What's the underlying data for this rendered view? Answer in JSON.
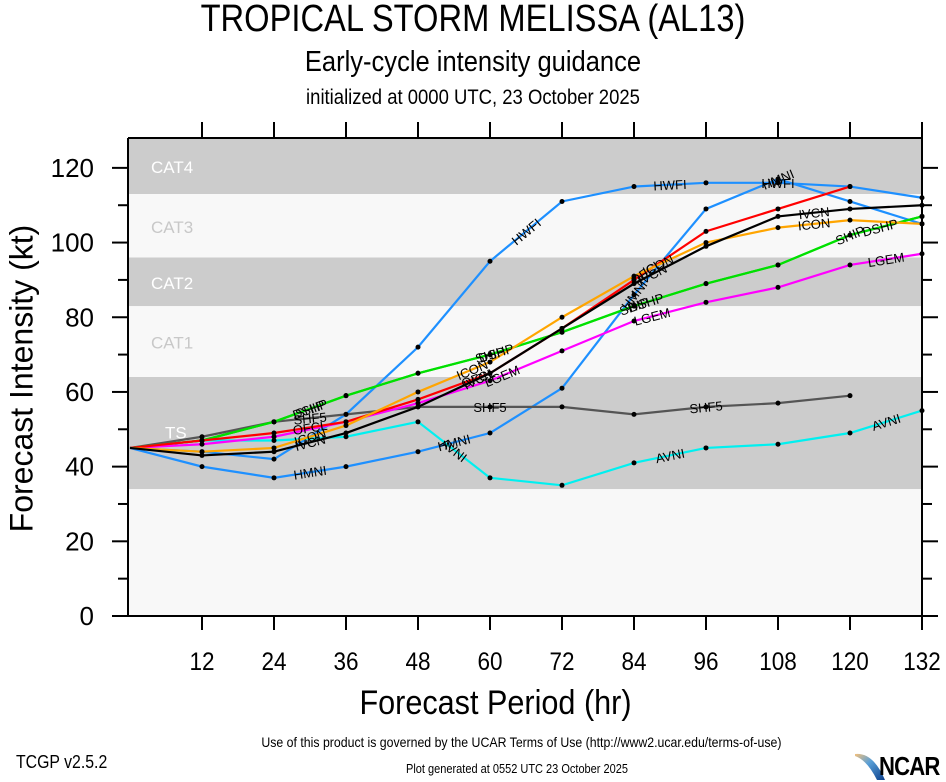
{
  "header": {
    "title": "TROPICAL STORM MELISSA (AL13)",
    "subtitle": "Early-cycle intensity guidance",
    "init": "initialized at 0000 UTC, 23 October 2025"
  },
  "footer": {
    "terms": "Use of this product is governed by the UCAR Terms of Use (http://www2.ucar.edu/terms-of-use)",
    "version": "TCGP v2.5.2",
    "generated": "Plot generated at 0552 UTC   23 October 2025",
    "logo": "NCAR"
  },
  "chart_data": {
    "type": "line",
    "title": "TROPICAL STORM MELISSA (AL13)",
    "xlabel": "Forecast Period (hr)",
    "ylabel": "Forecast Intensity (kt)",
    "xlim": [
      0,
      132
    ],
    "ylim": [
      0,
      128
    ],
    "xticks": [
      12,
      24,
      36,
      48,
      60,
      72,
      84,
      96,
      108,
      120,
      132
    ],
    "yticks": [
      0,
      20,
      40,
      60,
      80,
      100,
      120
    ],
    "grid": false,
    "legend": "inline-labels",
    "bands": [
      {
        "label": "TS",
        "min": 34,
        "max": 64,
        "fill": "#cccccc",
        "label_color": "#ffffff"
      },
      {
        "label": "CAT1",
        "min": 64,
        "max": 83,
        "fill": "#f8f8f8",
        "label_color": "#c8c8c8"
      },
      {
        "label": "CAT2",
        "min": 83,
        "max": 96,
        "fill": "#cccccc",
        "label_color": "#ffffff"
      },
      {
        "label": "CAT3",
        "min": 96,
        "max": 113,
        "fill": "#f8f8f8",
        "label_color": "#c8c8c8"
      },
      {
        "label": "CAT4",
        "min": 113,
        "max": 128,
        "fill": "#cccccc",
        "label_color": "#ffffff"
      }
    ],
    "base_fill": "#f8f8f8",
    "x": [
      0,
      12,
      24,
      36,
      48,
      60,
      72,
      84,
      96,
      108,
      120,
      132
    ],
    "series": [
      {
        "name": "HWFI",
        "color": "#1e90ff",
        "values": [
          45,
          44,
          42,
          54,
          72,
          95,
          111,
          115,
          116,
          116,
          115,
          112
        ],
        "label_at": [
          66,
          90,
          108
        ]
      },
      {
        "name": "HMNI",
        "color": "#1e90ff",
        "values": [
          45,
          40,
          37,
          40,
          44,
          49,
          61,
          86,
          109,
          117,
          111,
          105
        ],
        "label_at": [
          30,
          54,
          84,
          108
        ]
      },
      {
        "name": "AVNI",
        "color": "#00f0f0",
        "values": [
          45,
          47,
          47,
          48,
          52,
          37,
          35,
          41,
          45,
          46,
          49,
          55
        ],
        "label_at": [
          54,
          90,
          126
        ]
      },
      {
        "name": "SHF5",
        "color": "#555555",
        "values": [
          45,
          48,
          52,
          54,
          56,
          56,
          56,
          54,
          56,
          57,
          59,
          null
        ],
        "label_at": [
          30,
          60,
          96
        ]
      },
      {
        "name": "SHIP",
        "color": "#00e000",
        "values": [
          45,
          47,
          52,
          59,
          65,
          70,
          76,
          83,
          89,
          94,
          102,
          107
        ],
        "label_at": [
          30,
          60,
          84,
          120
        ]
      },
      {
        "name": "DSHP",
        "color": "#00e000",
        "values": [
          45,
          47,
          52,
          59,
          65,
          70,
          76,
          83,
          89,
          94,
          102,
          107
        ],
        "label_at": [
          30,
          61,
          86,
          125
        ]
      },
      {
        "name": "LGEM",
        "color": "#ff00ff",
        "values": [
          45,
          46,
          48,
          52,
          57,
          63,
          71,
          79,
          84,
          88,
          94,
          97
        ],
        "label_at": [
          62,
          87,
          126
        ]
      },
      {
        "name": "OFCL",
        "color": "#ff0000",
        "values": [
          45,
          47,
          49,
          52,
          58,
          65,
          77,
          90,
          103,
          109,
          115,
          null
        ],
        "label_at": [
          30,
          58,
          86
        ]
      },
      {
        "name": "ICON",
        "color": "#ffa500",
        "values": [
          45,
          44,
          45,
          51,
          60,
          68,
          80,
          91,
          100,
          104,
          106,
          105
        ],
        "label_at": [
          30,
          57,
          88,
          114
        ]
      },
      {
        "name": "IVCN",
        "color": "#000000",
        "values": [
          45,
          43,
          44,
          49,
          56,
          65,
          77,
          89,
          99,
          107,
          109,
          110
        ],
        "label_at": [
          30,
          58,
          87,
          114
        ]
      }
    ]
  }
}
